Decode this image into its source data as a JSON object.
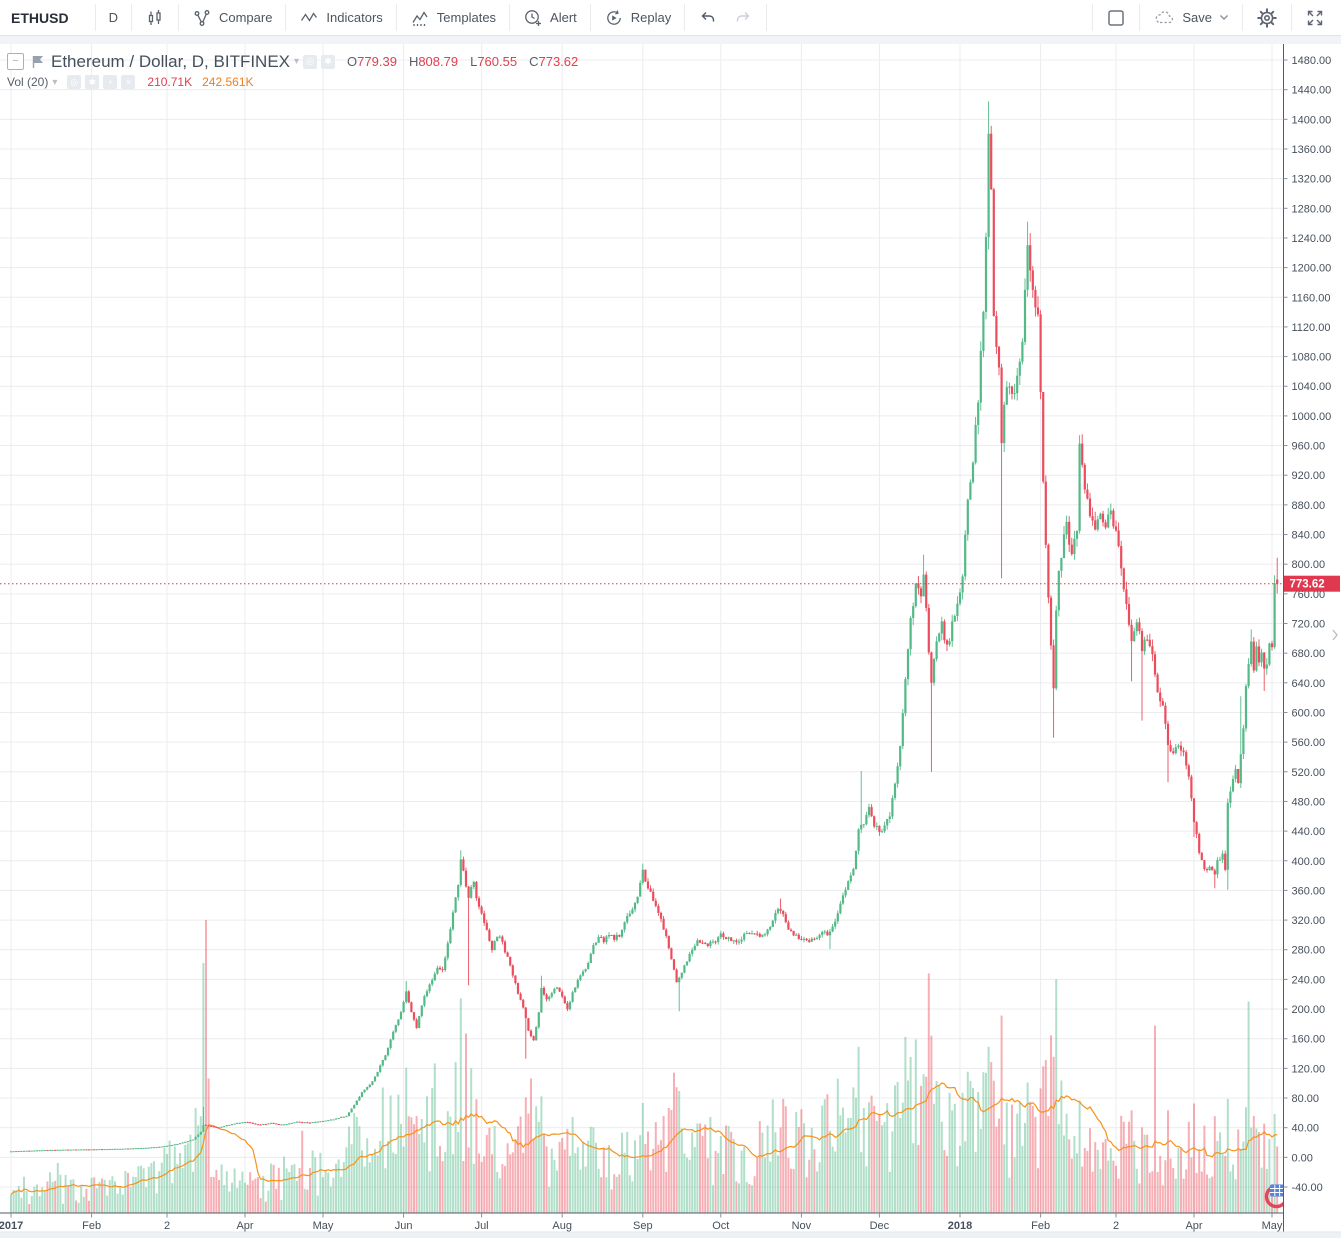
{
  "toolbar": {
    "symbol": "ETHUSD",
    "interval": "D",
    "compare": "Compare",
    "indicators": "Indicators",
    "templates": "Templates",
    "alert": "Alert",
    "replay": "Replay",
    "save": "Save"
  },
  "legend": {
    "title": "Ethereum / Dollar, D, BITFINEX",
    "ohlc": {
      "o_label": "O",
      "o": "779.39",
      "h_label": "H",
      "h": "808.79",
      "l_label": "L",
      "l": "760.55",
      "c_label": "C",
      "c": "773.62"
    },
    "volume": {
      "label": "Vol (20)",
      "value": "210.71K",
      "ma_value": "242.561K"
    }
  },
  "glyphs": {
    "minus": "−",
    "caret": "▾",
    "target": "◎",
    "star": "✱",
    "plus": "+",
    "close": "×"
  },
  "chart_data": {
    "type": "candlestick",
    "symbol": "Ethereum / Dollar",
    "exchange": "BITFINEX",
    "interval": "D",
    "legend_position": "top-left",
    "grid": true,
    "last_price": 773.62,
    "last_price_label": "773.62",
    "last_candle": {
      "open": 779.39,
      "high": 808.79,
      "low": 760.55,
      "close": 773.62
    },
    "current_volume": "210.71K",
    "volume_ma": "242.561K",
    "y_axis": {
      "min": -40,
      "max": 1480,
      "step": 40
    },
    "x_axis_labels": [
      {
        "label": "2017",
        "day": 0,
        "bold": true
      },
      {
        "label": "Feb",
        "day": 31
      },
      {
        "label": "2",
        "day": 60
      },
      {
        "label": "Apr",
        "day": 90
      },
      {
        "label": "May",
        "day": 120
      },
      {
        "label": "Jun",
        "day": 151
      },
      {
        "label": "Jul",
        "day": 181
      },
      {
        "label": "Aug",
        "day": 212
      },
      {
        "label": "Sep",
        "day": 243
      },
      {
        "label": "Oct",
        "day": 273
      },
      {
        "label": "Nov",
        "day": 304
      },
      {
        "label": "Dec",
        "day": 334
      },
      {
        "label": "2018",
        "day": 365,
        "bold": true
      },
      {
        "label": "Feb",
        "day": 396
      },
      {
        "label": "2",
        "day": 425
      },
      {
        "label": "Apr",
        "day": 455
      },
      {
        "label": "May",
        "day": 485
      }
    ],
    "price_anchors": [
      [
        0,
        8.2
      ],
      [
        10,
        9.4
      ],
      [
        20,
        10.4
      ],
      [
        31,
        10.8
      ],
      [
        40,
        11.4
      ],
      [
        50,
        12.5
      ],
      [
        58,
        14.5
      ],
      [
        64,
        18
      ],
      [
        70,
        24
      ],
      [
        73,
        34
      ],
      [
        74,
        44
      ],
      [
        76,
        42
      ],
      [
        80,
        40
      ],
      [
        85,
        45
      ],
      [
        90,
        48
      ],
      [
        95,
        44
      ],
      [
        100,
        46
      ],
      [
        105,
        44
      ],
      [
        110,
        48
      ],
      [
        115,
        47
      ],
      [
        120,
        49
      ],
      [
        125,
        52
      ],
      [
        129,
        56
      ],
      [
        132,
        70
      ],
      [
        135,
        88
      ],
      [
        138,
        98
      ],
      [
        141,
        115
      ],
      [
        144,
        138
      ],
      [
        147,
        168
      ],
      [
        150,
        196
      ],
      [
        152,
        225
      ],
      [
        154,
        196
      ],
      [
        156,
        176
      ],
      [
        158,
        205
      ],
      [
        160,
        226
      ],
      [
        162,
        240
      ],
      [
        164,
        258
      ],
      [
        166,
        252
      ],
      [
        168,
        290
      ],
      [
        170,
        330
      ],
      [
        172,
        368
      ],
      [
        173,
        398
      ],
      [
        174,
        385
      ],
      [
        175,
        368
      ],
      [
        176,
        352
      ],
      [
        177,
        362
      ],
      [
        178,
        368
      ],
      [
        179,
        352
      ],
      [
        181,
        330
      ],
      [
        183,
        305
      ],
      [
        185,
        278
      ],
      [
        187,
        300
      ],
      [
        189,
        290
      ],
      [
        191,
        268
      ],
      [
        193,
        245
      ],
      [
        195,
        222
      ],
      [
        197,
        200
      ],
      [
        199,
        172
      ],
      [
        201,
        158
      ],
      [
        203,
        195
      ],
      [
        204,
        228
      ],
      [
        206,
        215
      ],
      [
        208,
        222
      ],
      [
        210,
        230
      ],
      [
        212,
        218
      ],
      [
        214,
        200
      ],
      [
        216,
        222
      ],
      [
        218,
        238
      ],
      [
        220,
        250
      ],
      [
        222,
        262
      ],
      [
        224,
        285
      ],
      [
        226,
        298
      ],
      [
        228,
        290
      ],
      [
        230,
        302
      ],
      [
        232,
        296
      ],
      [
        234,
        300
      ],
      [
        236,
        318
      ],
      [
        238,
        330
      ],
      [
        240,
        342
      ],
      [
        242,
        368
      ],
      [
        243,
        386
      ],
      [
        244,
        372
      ],
      [
        246,
        355
      ],
      [
        248,
        342
      ],
      [
        250,
        322
      ],
      [
        252,
        298
      ],
      [
        254,
        268
      ],
      [
        256,
        235
      ],
      [
        258,
        248
      ],
      [
        260,
        265
      ],
      [
        262,
        280
      ],
      [
        264,
        294
      ],
      [
        266,
        290
      ],
      [
        268,
        286
      ],
      [
        270,
        290
      ],
      [
        273,
        300
      ],
      [
        276,
        295
      ],
      [
        279,
        291
      ],
      [
        282,
        299
      ],
      [
        285,
        303
      ],
      [
        288,
        297
      ],
      [
        291,
        307
      ],
      [
        293,
        320
      ],
      [
        295,
        338
      ],
      [
        297,
        330
      ],
      [
        299,
        308
      ],
      [
        301,
        300
      ],
      [
        304,
        294
      ],
      [
        307,
        289
      ],
      [
        310,
        298
      ],
      [
        312,
        305
      ],
      [
        314,
        300
      ],
      [
        316,
        312
      ],
      [
        318,
        328
      ],
      [
        320,
        350
      ],
      [
        322,
        370
      ],
      [
        324,
        386
      ],
      [
        326,
        438
      ],
      [
        328,
        452
      ],
      [
        330,
        468
      ],
      [
        332,
        450
      ],
      [
        334,
        436
      ],
      [
        336,
        450
      ],
      [
        338,
        460
      ],
      [
        340,
        500
      ],
      [
        342,
        552
      ],
      [
        344,
        648
      ],
      [
        346,
        726
      ],
      [
        348,
        770
      ],
      [
        350,
        758
      ],
      [
        351,
        792
      ],
      [
        352,
        740
      ],
      [
        353,
        685
      ],
      [
        354,
        640
      ],
      [
        355,
        668
      ],
      [
        356,
        698
      ],
      [
        358,
        716
      ],
      [
        360,
        690
      ],
      [
        362,
        716
      ],
      [
        364,
        740
      ],
      [
        366,
        786
      ],
      [
        368,
        880
      ],
      [
        370,
        938
      ],
      [
        372,
        1024
      ],
      [
        374,
        1130
      ],
      [
        375,
        1245
      ],
      [
        376,
        1380
      ],
      [
        377,
        1298
      ],
      [
        378,
        1125
      ],
      [
        379,
        1090
      ],
      [
        380,
        1068
      ],
      [
        381,
        962
      ],
      [
        382,
        1005
      ],
      [
        383,
        1045
      ],
      [
        385,
        1020
      ],
      [
        387,
        1055
      ],
      [
        389,
        1090
      ],
      [
        391,
        1235
      ],
      [
        392,
        1205
      ],
      [
        393,
        1175
      ],
      [
        395,
        1140
      ],
      [
        396,
        1025
      ],
      [
        397,
        915
      ],
      [
        398,
        830
      ],
      [
        399,
        762
      ],
      [
        400,
        690
      ],
      [
        401,
        634
      ],
      [
        402,
        745
      ],
      [
        403,
        788
      ],
      [
        404,
        815
      ],
      [
        406,
        855
      ],
      [
        408,
        810
      ],
      [
        410,
        850
      ],
      [
        411,
        955
      ],
      [
        412,
        928
      ],
      [
        413,
        900
      ],
      [
        415,
        865
      ],
      [
        417,
        850
      ],
      [
        419,
        866
      ],
      [
        421,
        856
      ],
      [
        423,
        864
      ],
      [
        425,
        850
      ],
      [
        427,
        796
      ],
      [
        429,
        740
      ],
      [
        431,
        700
      ],
      [
        433,
        720
      ],
      [
        435,
        686
      ],
      [
        437,
        700
      ],
      [
        439,
        676
      ],
      [
        441,
        626
      ],
      [
        443,
        610
      ],
      [
        445,
        558
      ],
      [
        447,
        546
      ],
      [
        449,
        556
      ],
      [
        451,
        548
      ],
      [
        453,
        516
      ],
      [
        455,
        450
      ],
      [
        457,
        414
      ],
      [
        459,
        386
      ],
      [
        461,
        394
      ],
      [
        463,
        379
      ],
      [
        464,
        398
      ],
      [
        466,
        410
      ],
      [
        467,
        391
      ],
      [
        468,
        476
      ],
      [
        469,
        498
      ],
      [
        471,
        520
      ],
      [
        472,
        504
      ],
      [
        473,
        546
      ],
      [
        474,
        582
      ],
      [
        475,
        638
      ],
      [
        476,
        665
      ],
      [
        477,
        702
      ],
      [
        478,
        660
      ],
      [
        479,
        686
      ],
      [
        480,
        670
      ],
      [
        481,
        678
      ],
      [
        482,
        653
      ],
      [
        483,
        666
      ],
      [
        484,
        690
      ],
      [
        485,
        687
      ],
      [
        486,
        770
      ],
      [
        487,
        773.62
      ]
    ],
    "wick_events": [
      {
        "day": 74,
        "high": 68
      },
      {
        "day": 152,
        "high": 238
      },
      {
        "day": 173,
        "high": 414
      },
      {
        "day": 176,
        "low": 232
      },
      {
        "day": 198,
        "low": 133
      },
      {
        "day": 204,
        "high": 245
      },
      {
        "day": 243,
        "high": 396
      },
      {
        "day": 257,
        "low": 197
      },
      {
        "day": 296,
        "high": 349
      },
      {
        "day": 315,
        "low": 281
      },
      {
        "day": 327,
        "high": 521
      },
      {
        "day": 351,
        "high": 813
      },
      {
        "day": 354,
        "low": 520
      },
      {
        "day": 376,
        "high": 1424
      },
      {
        "day": 381,
        "low": 781
      },
      {
        "day": 391,
        "high": 1262
      },
      {
        "day": 401,
        "low": 566
      },
      {
        "day": 411,
        "high": 974
      },
      {
        "day": 431,
        "low": 642
      },
      {
        "day": 435,
        "low": 589
      },
      {
        "day": 445,
        "low": 506
      },
      {
        "day": 455,
        "low": 432
      },
      {
        "day": 463,
        "low": 363
      },
      {
        "day": 468,
        "low": 361
      },
      {
        "day": 473,
        "high": 622
      },
      {
        "day": 477,
        "high": 712
      },
      {
        "day": 482,
        "low": 629
      },
      {
        "day": 486,
        "high": 785
      }
    ],
    "volume_profile": [
      [
        0,
        0.055
      ],
      [
        54,
        0.1
      ],
      [
        78,
        0.12
      ],
      [
        90,
        0.07
      ],
      [
        128,
        0.15
      ],
      [
        210,
        0.13
      ],
      [
        310,
        0.25
      ],
      [
        365,
        0.27
      ],
      [
        420,
        0.16
      ],
      [
        487,
        0.14
      ]
    ],
    "volume_spikes": [
      [
        18,
        0.17
      ],
      [
        24,
        0.12
      ],
      [
        44,
        0.14
      ],
      [
        59,
        0.22
      ],
      [
        74,
        0.9
      ],
      [
        75,
        1.0
      ],
      [
        76,
        0.45
      ],
      [
        105,
        0.2
      ],
      [
        112,
        0.28
      ],
      [
        130,
        0.25
      ],
      [
        134,
        0.3
      ],
      [
        143,
        0.45
      ],
      [
        146,
        0.42
      ],
      [
        149,
        0.4
      ],
      [
        152,
        0.48
      ],
      [
        155,
        0.3
      ],
      [
        160,
        0.42
      ],
      [
        162,
        0.45
      ],
      [
        163,
        0.52
      ],
      [
        169,
        0.35
      ],
      [
        171,
        0.52
      ],
      [
        173,
        0.75
      ],
      [
        175,
        0.62
      ],
      [
        177,
        0.48
      ],
      [
        179,
        0.4
      ],
      [
        186,
        0.3
      ],
      [
        196,
        0.35
      ],
      [
        198,
        0.4
      ],
      [
        200,
        0.48
      ],
      [
        204,
        0.42
      ],
      [
        225,
        0.25
      ],
      [
        243,
        0.38
      ],
      [
        253,
        0.32
      ],
      [
        255,
        0.48
      ],
      [
        257,
        0.42
      ],
      [
        294,
        0.25
      ],
      [
        296,
        0.3
      ],
      [
        320,
        0.3
      ],
      [
        324,
        0.42
      ],
      [
        326,
        0.55
      ],
      [
        330,
        0.38
      ],
      [
        336,
        0.3
      ],
      [
        340,
        0.42
      ],
      [
        344,
        0.6
      ],
      [
        346,
        0.52
      ],
      [
        348,
        0.58
      ],
      [
        351,
        0.5
      ],
      [
        353,
        0.8
      ],
      [
        354,
        0.62
      ],
      [
        356,
        0.45
      ],
      [
        362,
        0.35
      ],
      [
        366,
        0.4
      ],
      [
        368,
        0.48
      ],
      [
        370,
        0.42
      ],
      [
        372,
        0.4
      ],
      [
        374,
        0.45
      ],
      [
        376,
        0.55
      ],
      [
        377,
        0.52
      ],
      [
        378,
        0.45
      ],
      [
        381,
        0.7
      ],
      [
        383,
        0.4
      ],
      [
        391,
        0.45
      ],
      [
        393,
        0.38
      ],
      [
        396,
        0.42
      ],
      [
        398,
        0.52
      ],
      [
        400,
        0.6
      ],
      [
        401,
        0.55
      ],
      [
        402,
        0.81
      ],
      [
        404,
        0.45
      ],
      [
        406,
        0.35
      ],
      [
        411,
        0.4
      ],
      [
        415,
        0.3
      ],
      [
        427,
        0.32
      ],
      [
        431,
        0.35
      ],
      [
        437,
        0.28
      ],
      [
        440,
        0.66
      ],
      [
        445,
        0.35
      ],
      [
        453,
        0.3
      ],
      [
        455,
        0.35
      ],
      [
        459,
        0.3
      ],
      [
        463,
        0.35
      ],
      [
        465,
        0.28
      ],
      [
        468,
        0.38
      ],
      [
        472,
        0.3
      ],
      [
        476,
        0.7
      ],
      [
        478,
        0.35
      ],
      [
        482,
        0.3
      ],
      [
        484,
        0.25
      ],
      [
        486,
        0.28
      ],
      [
        487,
        0.24
      ]
    ],
    "colors": {
      "up": "#53b987",
      "down": "#eb4d5c",
      "vol_up": "rgba(83,185,135,0.45)",
      "vol_down": "rgba(235,77,92,0.45)",
      "vol_ma": "#f89217",
      "grid": "#ececf0",
      "axis_line": "#555a64",
      "axis_text": "#45505c",
      "last_price_bg": "#e0394f",
      "dotted_line": "#e0394f"
    }
  }
}
